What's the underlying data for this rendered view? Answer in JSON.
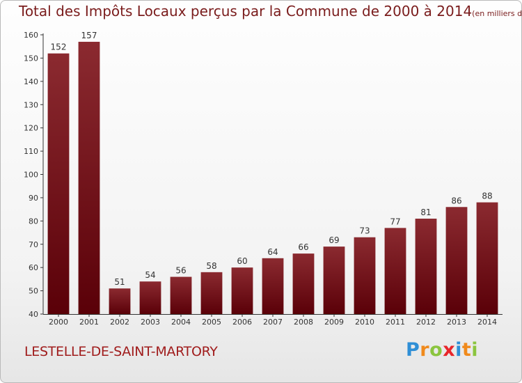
{
  "header": {
    "title": "Total des Impôts Locaux perçus par la Commune de 2000 à 2014",
    "unit": "(en milliers d'€)"
  },
  "footer": {
    "commune": "LESTELLE-DE-SAINT-MARTORY",
    "logo_letters": [
      "P",
      "r",
      "o",
      "x",
      "i",
      "t",
      "i"
    ],
    "logo_colors": [
      "#2f8fd6",
      "#f08a1c",
      "#8bc53f",
      "#e8262a",
      "#2f8fd6",
      "#f08a1c",
      "#8bc53f"
    ]
  },
  "chart_data": {
    "type": "bar",
    "categories": [
      "2000",
      "2001",
      "2002",
      "2003",
      "2004",
      "2005",
      "2006",
      "2007",
      "2008",
      "2009",
      "2010",
      "2011",
      "2012",
      "2013",
      "2014"
    ],
    "values": [
      152,
      157,
      51,
      54,
      56,
      58,
      60,
      64,
      66,
      69,
      73,
      77,
      81,
      86,
      88
    ],
    "ylim": [
      40,
      160
    ],
    "yticks": [
      40,
      50,
      60,
      70,
      80,
      90,
      100,
      110,
      120,
      130,
      140,
      150,
      160
    ],
    "grid": false,
    "bar_color_top": "#8b2a30",
    "bar_color_bottom": "#5a0008",
    "data_labels": true
  }
}
